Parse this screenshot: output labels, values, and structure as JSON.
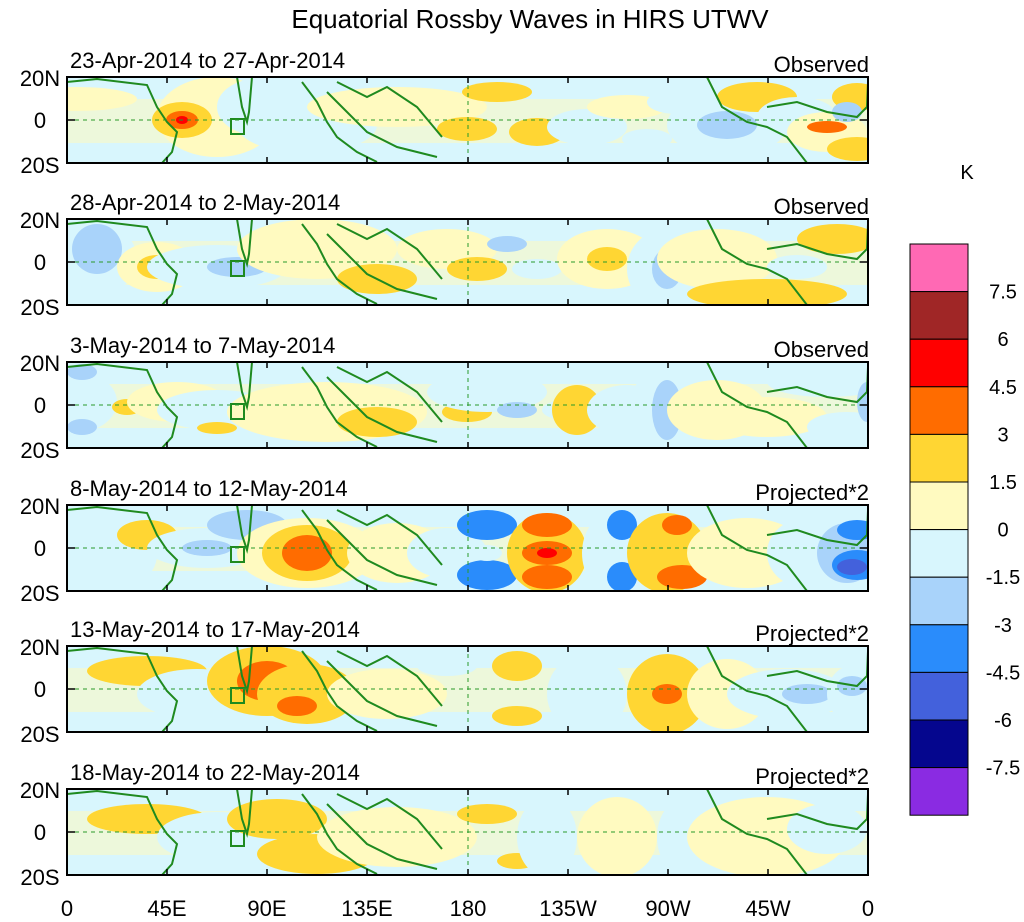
{
  "chart_data": {
    "type": "heatmap",
    "title": "Equatorial Rossby Waves in HIRS UTWV",
    "units": "K",
    "xlabel": "",
    "ylabel": "",
    "x_ticks": [
      "0",
      "45E",
      "90E",
      "135E",
      "180",
      "135W",
      "90W",
      "45W",
      "0"
    ],
    "y_ticks": [
      "20N",
      "0",
      "20S"
    ],
    "colorbar": {
      "labels": [
        "7.5",
        "6",
        "4.5",
        "3",
        "1.5",
        "0",
        "-1.5",
        "-3",
        "-4.5",
        "-6",
        "-7.5"
      ],
      "colors": [
        "#ff69b4",
        "#a02626",
        "#ff0000",
        "#ff6c00",
        "#ffd633",
        "#fffac0",
        "#d8f6fd",
        "#a9d3fa",
        "#2a8cfb",
        "#4361dc",
        "#05068e",
        "#8a2be2"
      ]
    },
    "panels": [
      {
        "date_range": "23-Apr-2014 to 27-Apr-2014",
        "type_label": "Observed"
      },
      {
        "date_range": "28-Apr-2014 to 2-May-2014",
        "type_label": "Observed"
      },
      {
        "date_range": "3-May-2014 to 7-May-2014",
        "type_label": "Observed"
      },
      {
        "date_range": "8-May-2014 to 12-May-2014",
        "type_label": "Projected*2"
      },
      {
        "date_range": "13-May-2014 to 17-May-2014",
        "type_label": "Projected*2"
      },
      {
        "date_range": "18-May-2014 to 22-May-2014",
        "type_label": "Projected*2"
      }
    ]
  }
}
